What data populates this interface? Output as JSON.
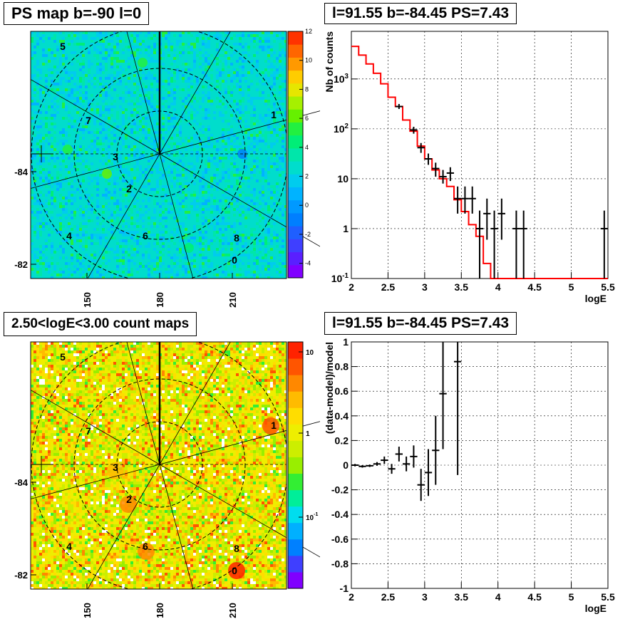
{
  "panels": {
    "tl": {
      "title": "PS map b=-90 l=0"
    },
    "tr": {
      "title": "l=91.55 b=-84.45 PS=7.43"
    },
    "bl": {
      "title": "2.50<logE<3.00 count maps"
    },
    "br": {
      "title": "l=91.55 b=-84.45 PS=7.43"
    }
  },
  "colors": {
    "hist": "#ff0000",
    "points": "#000000",
    "grid": "#000000"
  },
  "chart_data": [
    {
      "id": "ps-map",
      "type": "heatmap",
      "title": "PS map b=-90 l=0",
      "xticks": [
        "150",
        "180",
        "210"
      ],
      "yticks": [
        "-84",
        "-82"
      ],
      "colorbar": {
        "min": -5,
        "max": 12,
        "ticks": [
          "12",
          "10",
          "8",
          "6",
          "4",
          "2",
          "0",
          "-2",
          "-4"
        ]
      },
      "labels": [
        "5",
        "7",
        "1",
        "3",
        "2",
        "4",
        "6",
        "8",
        "0"
      ]
    },
    {
      "id": "count-spectrum",
      "type": "line",
      "title": "l=91.55 b=-84.45 PS=7.43",
      "xlabel": "logE",
      "ylabel": "Nb of counts",
      "xlim": [
        2,
        5.5
      ],
      "ylim": [
        0.1,
        9000
      ],
      "yscale": "log",
      "grid": true,
      "xticks": [
        "2",
        "2.5",
        "3",
        "3.5",
        "4",
        "4.5",
        "5",
        "5.5"
      ],
      "yticks": [
        {
          "label": "10",
          "sup": "-1",
          "v": 0.1
        },
        {
          "label": "1",
          "sup": "",
          "v": 1
        },
        {
          "label": "10",
          "sup": "",
          "v": 10
        },
        {
          "label": "10",
          "sup": "2",
          "v": 100
        },
        {
          "label": "10",
          "sup": "3",
          "v": 1000
        }
      ],
      "series": [
        {
          "kind": "step",
          "edges": [
            2.0,
            2.1,
            2.2,
            2.3,
            2.4,
            2.5,
            2.6,
            2.7,
            2.8,
            2.9,
            3.0,
            3.1,
            3.2,
            3.3,
            3.4,
            3.5,
            3.6,
            3.7,
            3.8,
            3.9,
            4.0,
            4.1,
            4.2,
            4.3,
            4.4,
            4.5,
            4.6,
            4.7,
            4.8,
            4.9,
            5.0,
            5.1,
            5.2,
            5.3,
            5.4,
            5.5
          ],
          "values": [
            4500,
            3000,
            2000,
            1300,
            800,
            430,
            280,
            150,
            90,
            45,
            25,
            15,
            10,
            7,
            3.8,
            2.2,
            1.2,
            0.7,
            0.2,
            0.1,
            0.1,
            0.1,
            0.1,
            0.1,
            0.1,
            0.1,
            0.1,
            0.1,
            0.1,
            0.1,
            0.1,
            0.1,
            0.1,
            0.1,
            0.1
          ]
        },
        {
          "kind": "errorbar",
          "points": [
            {
              "x": 2.65,
              "y": 280,
              "lo": 250,
              "hi": 315
            },
            {
              "x": 2.85,
              "y": 95,
              "lo": 80,
              "hi": 110
            },
            {
              "x": 2.95,
              "y": 42,
              "lo": 33,
              "hi": 52
            },
            {
              "x": 3.05,
              "y": 25,
              "lo": 19,
              "hi": 32
            },
            {
              "x": 3.15,
              "y": 16,
              "lo": 11,
              "hi": 21
            },
            {
              "x": 3.25,
              "y": 11,
              "lo": 8,
              "hi": 15
            },
            {
              "x": 3.35,
              "y": 13,
              "lo": 9,
              "hi": 17
            },
            {
              "x": 3.45,
              "y": 4,
              "lo": 2,
              "hi": 7
            },
            {
              "x": 3.55,
              "y": 4,
              "lo": 2,
              "hi": 7
            },
            {
              "x": 3.65,
              "y": 4,
              "lo": 2,
              "hi": 7
            },
            {
              "x": 3.75,
              "y": 1,
              "lo": 0.1,
              "hi": 2.3
            },
            {
              "x": 3.85,
              "y": 2,
              "lo": 0.6,
              "hi": 4
            },
            {
              "x": 3.95,
              "y": 1,
              "lo": 0.1,
              "hi": 2.3
            },
            {
              "x": 4.05,
              "y": 2,
              "lo": 0.6,
              "hi": 4
            },
            {
              "x": 4.25,
              "y": 1,
              "lo": 0.1,
              "hi": 2.3
            },
            {
              "x": 4.35,
              "y": 1,
              "lo": 0.1,
              "hi": 2.3
            },
            {
              "x": 5.45,
              "y": 1,
              "lo": 0.1,
              "hi": 2.3
            }
          ]
        }
      ]
    },
    {
      "id": "count-map",
      "type": "heatmap",
      "title": "2.50<logE<3.00 count maps",
      "xticks": [
        "150",
        "180",
        "210"
      ],
      "yticks": [
        "-84",
        "-82"
      ],
      "colorbar": {
        "scale": "log",
        "ticks": [
          {
            "label": "10",
            "sup": ""
          },
          {
            "label": "1",
            "sup": ""
          },
          {
            "label": "10",
            "sup": "-1"
          }
        ]
      },
      "labels": [
        "5",
        "7",
        "1",
        "3",
        "2",
        "4",
        "6",
        "8",
        "0"
      ]
    },
    {
      "id": "residuals",
      "type": "scatter",
      "title": "l=91.55 b=-84.45 PS=7.43",
      "xlabel": "logE",
      "ylabel": "(data-model)/model",
      "xlim": [
        2,
        5.5
      ],
      "ylim": [
        -1,
        1
      ],
      "grid": true,
      "xticks": [
        "2",
        "2.5",
        "3",
        "3.5",
        "4",
        "4.5",
        "5",
        "5.5"
      ],
      "yticks": [
        "1",
        "0.8",
        "0.6",
        "0.4",
        "0.2",
        "0",
        "-0.2",
        "-0.4",
        "-0.6",
        "-0.8",
        "-1"
      ],
      "points": [
        {
          "x": 2.05,
          "y": 0.0,
          "e": 0.01
        },
        {
          "x": 2.15,
          "y": -0.01,
          "e": 0.01
        },
        {
          "x": 2.25,
          "y": -0.005,
          "e": 0.01
        },
        {
          "x": 2.35,
          "y": 0.01,
          "e": 0.015
        },
        {
          "x": 2.45,
          "y": 0.04,
          "e": 0.03
        },
        {
          "x": 2.55,
          "y": -0.03,
          "e": 0.04
        },
        {
          "x": 2.65,
          "y": 0.09,
          "e": 0.06
        },
        {
          "x": 2.75,
          "y": 0.01,
          "e": 0.06
        },
        {
          "x": 2.85,
          "y": 0.07,
          "e": 0.09
        },
        {
          "x": 2.95,
          "y": -0.16,
          "e": 0.13
        },
        {
          "x": 3.05,
          "y": -0.06,
          "e": 0.19
        },
        {
          "x": 3.15,
          "y": 0.12,
          "e": 0.28
        },
        {
          "x": 3.25,
          "y": 0.58,
          "e": 0.45
        },
        {
          "x": 3.45,
          "y": 0.84,
          "e": 0.92
        }
      ]
    }
  ]
}
